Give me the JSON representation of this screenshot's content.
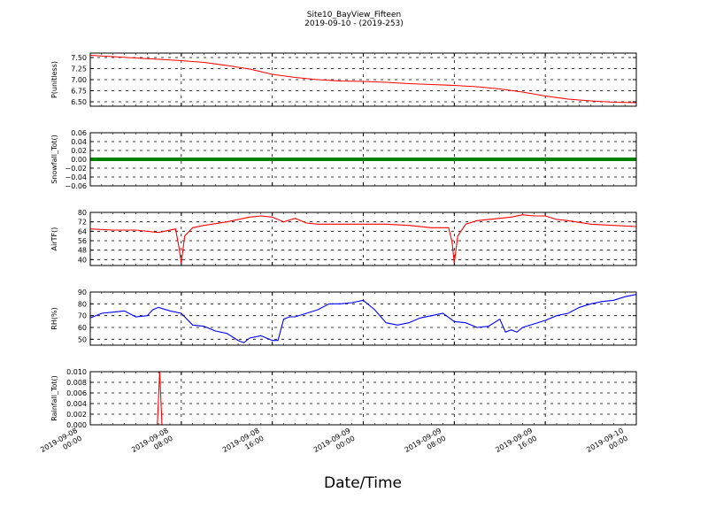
{
  "title": "Site10_BayView_Fifteen",
  "subtitle": "2019-09-10 - (2019-253)",
  "xlabel": "Date/Time",
  "x_ticks": [
    {
      "line1": "2019-09-08",
      "line2": "00:00"
    },
    {
      "line1": "2019-09-08",
      "line2": "08:00"
    },
    {
      "line1": "2019-09-08",
      "line2": "16:00"
    },
    {
      "line1": "2019-09-09",
      "line2": "00:00"
    },
    {
      "line1": "2019-09-09",
      "line2": "08:00"
    },
    {
      "line1": "2019-09-09",
      "line2": "16:00"
    },
    {
      "line1": "2019-09-10",
      "line2": "00:00"
    }
  ],
  "chart_data": [
    {
      "type": "line",
      "ylabel": "P(unitless)",
      "ylim": [
        6.4,
        7.6
      ],
      "yticks": [
        "7.50",
        "7.25",
        "7.00",
        "6.75",
        "6.50"
      ],
      "ytick_values": [
        7.5,
        7.25,
        7.0,
        6.75,
        6.5
      ],
      "color": "#ff0000",
      "series": [
        {
          "x_hours": [
            0,
            2,
            4,
            6,
            8,
            10,
            12,
            14,
            16,
            18,
            20,
            22,
            24,
            26,
            28,
            30,
            32,
            34,
            36,
            38,
            40,
            42,
            44,
            46,
            48
          ],
          "values": [
            7.55,
            7.52,
            7.49,
            7.46,
            7.43,
            7.39,
            7.32,
            7.24,
            7.12,
            7.05,
            7.0,
            6.97,
            6.96,
            6.94,
            6.91,
            6.89,
            6.87,
            6.84,
            6.79,
            6.72,
            6.63,
            6.56,
            6.52,
            6.49,
            6.48
          ]
        }
      ]
    },
    {
      "type": "line",
      "ylabel": "Snowfall_Tot()",
      "ylim": [
        -0.06,
        0.06
      ],
      "yticks": [
        "0.06",
        "0.04",
        "0.02",
        "0.00",
        "−0.02",
        "−0.04",
        "−0.06"
      ],
      "ytick_values": [
        0.06,
        0.04,
        0.02,
        0.0,
        -0.02,
        -0.04,
        -0.06
      ],
      "color": "#008000",
      "series": [
        {
          "x_hours": [
            0,
            48
          ],
          "values": [
            0.0,
            0.0
          ]
        }
      ]
    },
    {
      "type": "line",
      "ylabel": "AirTF()",
      "ylim": [
        35,
        80
      ],
      "yticks": [
        "80",
        "72",
        "64",
        "56",
        "48",
        "40"
      ],
      "ytick_values": [
        80,
        72,
        64,
        56,
        48,
        40
      ],
      "color": "#ff0000",
      "series": [
        {
          "x_hours": [
            0,
            2,
            4,
            6,
            7.5,
            7.8,
            8.0,
            8.3,
            9,
            10,
            12,
            14,
            15,
            16,
            17,
            18,
            19,
            20,
            22,
            24,
            26,
            28,
            30,
            31.5,
            31.8,
            32.0,
            32.3,
            33,
            34,
            36,
            37,
            38,
            39,
            40,
            41,
            42,
            44,
            46,
            48
          ],
          "values": [
            66,
            65,
            65,
            63,
            66,
            50,
            37,
            60,
            67,
            69,
            72,
            76,
            77,
            76,
            72,
            75,
            71,
            70,
            70,
            70,
            70,
            69,
            67,
            67,
            55,
            37,
            60,
            70,
            73,
            75,
            76,
            78,
            77,
            77,
            74,
            73,
            70,
            69,
            68
          ]
        }
      ]
    },
    {
      "type": "line",
      "ylabel": "RH(%)",
      "ylim": [
        45,
        90
      ],
      "yticks": [
        "90",
        "80",
        "70",
        "60",
        "50"
      ],
      "ytick_values": [
        90,
        80,
        70,
        60,
        50
      ],
      "color": "#0000ff",
      "series": [
        {
          "x_hours": [
            0,
            1,
            2,
            3,
            4,
            5,
            5.5,
            6,
            7,
            8,
            9,
            10,
            11,
            12,
            13,
            13.5,
            14,
            15,
            16,
            16.5,
            17,
            17.5,
            18,
            19,
            20,
            21,
            22,
            23,
            24,
            25,
            26,
            27,
            28,
            29,
            30,
            31,
            32,
            33,
            34,
            35,
            36,
            36.5,
            37,
            37.5,
            38,
            39,
            40,
            41,
            42,
            43,
            44,
            45,
            46,
            47,
            48
          ],
          "values": [
            68,
            72,
            73,
            74,
            69,
            70,
            75,
            77,
            74,
            72,
            62,
            61,
            57,
            55,
            49,
            47,
            51,
            53,
            49,
            49,
            67,
            69,
            69,
            72,
            75,
            80,
            80,
            81,
            83,
            75,
            64,
            62,
            64,
            68,
            70,
            72,
            65,
            64,
            60,
            61,
            67,
            56,
            58,
            56,
            60,
            63,
            66,
            70,
            72,
            77,
            80,
            82,
            83,
            86,
            88
          ]
        }
      ]
    },
    {
      "type": "line",
      "ylabel": "Rainfall_Tot()",
      "ylim": [
        0,
        0.01
      ],
      "yticks": [
        "0.010",
        "0.008",
        "0.006",
        "0.004",
        "0.002",
        "0.000"
      ],
      "ytick_values": [
        0.01,
        0.008,
        0.006,
        0.004,
        0.002,
        0.0
      ],
      "color": "#ff0000",
      "series": [
        {
          "x_hours": [
            0,
            5.9,
            6.1,
            6.3,
            48
          ],
          "values": [
            0.0,
            0.0,
            0.01,
            0.0,
            0.0
          ]
        }
      ]
    }
  ]
}
